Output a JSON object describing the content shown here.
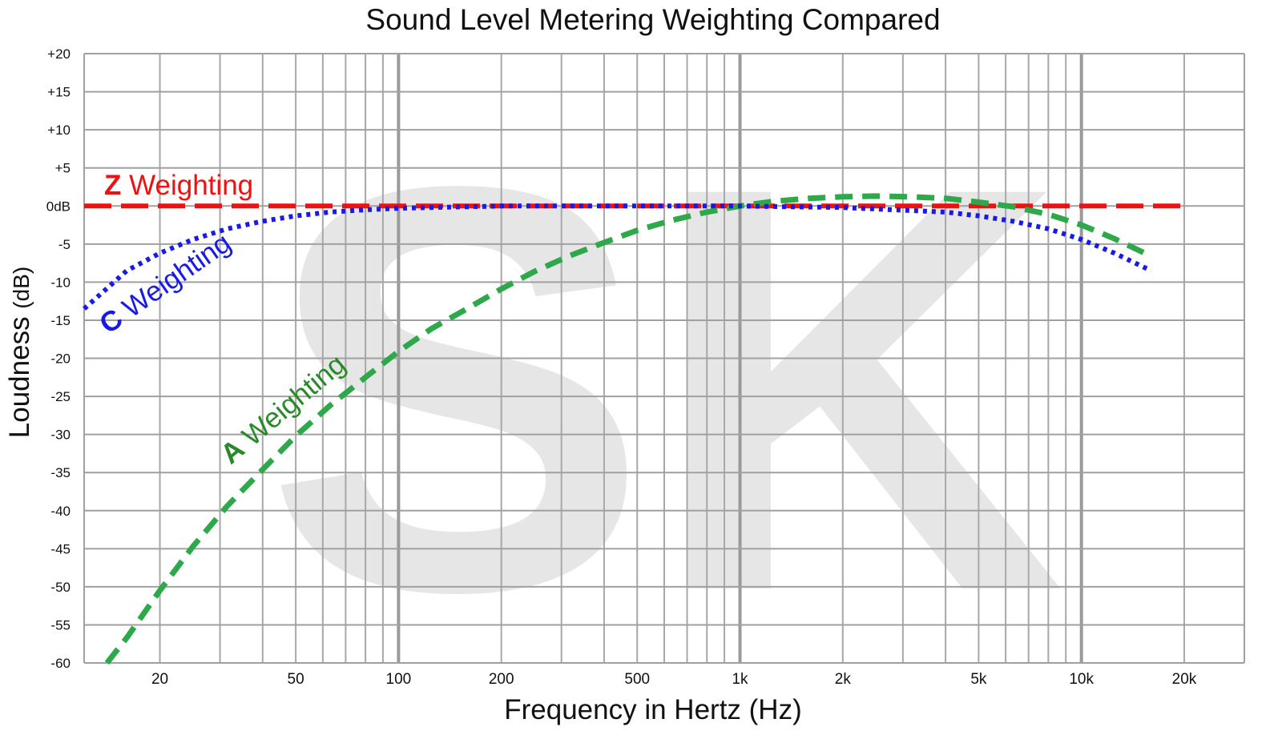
{
  "chart_data": {
    "type": "line",
    "title": "Sound Level Metering Weighting Compared",
    "xlabel": "Frequency in Hertz",
    "xlabel_unit": "(Hz)",
    "ylabel": "Loudness",
    "ylabel_unit": "(dB)",
    "x_scale": "log",
    "xlim": [
      12,
      30000
    ],
    "ylim": [
      -60,
      20
    ],
    "grid": true,
    "watermark": "SK",
    "y_ticks": [
      {
        "value": 20,
        "label": "+20"
      },
      {
        "value": 15,
        "label": "+15"
      },
      {
        "value": 10,
        "label": "+10"
      },
      {
        "value": 5,
        "label": "+5"
      },
      {
        "value": 0,
        "label": "0dB"
      },
      {
        "value": -5,
        "label": "-5"
      },
      {
        "value": -10,
        "label": "-10"
      },
      {
        "value": -15,
        "label": "-15"
      },
      {
        "value": -20,
        "label": "-20"
      },
      {
        "value": -25,
        "label": "-25"
      },
      {
        "value": -30,
        "label": "-30"
      },
      {
        "value": -35,
        "label": "-35"
      },
      {
        "value": -40,
        "label": "-40"
      },
      {
        "value": -45,
        "label": "-45"
      },
      {
        "value": -50,
        "label": "-50"
      },
      {
        "value": -55,
        "label": "-55"
      },
      {
        "value": -60,
        "label": "-60"
      }
    ],
    "x_ticks": [
      {
        "value": 20,
        "label": "20"
      },
      {
        "value": 50,
        "label": "50"
      },
      {
        "value": 100,
        "label": "100"
      },
      {
        "value": 200,
        "label": "200"
      },
      {
        "value": 500,
        "label": "500"
      },
      {
        "value": 1000,
        "label": "1k"
      },
      {
        "value": 2000,
        "label": "2k"
      },
      {
        "value": 5000,
        "label": "5k"
      },
      {
        "value": 10000,
        "label": "10k"
      },
      {
        "value": 20000,
        "label": "20k"
      }
    ],
    "series": [
      {
        "name": "Z Weighting",
        "color": "#ee1111",
        "style": "long-dash",
        "x": [
          12,
          50,
          100,
          1000,
          10000,
          20000
        ],
        "y": [
          0,
          0,
          0,
          0,
          0,
          0
        ]
      },
      {
        "name": "C Weighting",
        "color": "#1a1ae6",
        "style": "dotted",
        "x": [
          12,
          16,
          20,
          25,
          31.5,
          40,
          50,
          63,
          80,
          100,
          200,
          500,
          1000,
          2000,
          4000,
          5000,
          6300,
          8000,
          10000,
          12500,
          16000
        ],
        "y": [
          -13.5,
          -8.5,
          -6.2,
          -4.4,
          -3.0,
          -2.0,
          -1.3,
          -0.8,
          -0.5,
          -0.3,
          0.0,
          0.0,
          0.0,
          -0.2,
          -0.8,
          -1.3,
          -2.0,
          -3.0,
          -4.4,
          -6.2,
          -8.5
        ]
      },
      {
        "name": "A Weighting",
        "color": "#2ea84a",
        "style": "dashed",
        "x": [
          14,
          16,
          20,
          25,
          31.5,
          40,
          50,
          63,
          80,
          100,
          125,
          160,
          200,
          250,
          315,
          400,
          500,
          630,
          800,
          1000,
          1250,
          1600,
          2000,
          2500,
          3150,
          4000,
          5000,
          6300,
          8000,
          10000,
          12500,
          16000
        ],
        "y": [
          -60,
          -56.7,
          -50.5,
          -44.7,
          -39.4,
          -34.6,
          -30.2,
          -26.2,
          -22.5,
          -19.1,
          -16.1,
          -13.4,
          -10.9,
          -8.6,
          -6.6,
          -4.8,
          -3.2,
          -1.9,
          -0.8,
          0.0,
          0.6,
          1.0,
          1.2,
          1.3,
          1.2,
          1.0,
          0.5,
          -0.1,
          -1.1,
          -2.5,
          -4.3,
          -6.6
        ]
      }
    ]
  }
}
